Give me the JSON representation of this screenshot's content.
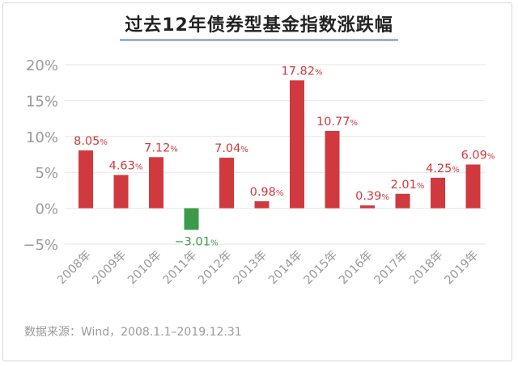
{
  "chart_data": {
    "type": "bar",
    "title": "过去12年债券型基金指数涨跌幅",
    "categories": [
      "2008年",
      "2009年",
      "2010年",
      "2011年",
      "2012年",
      "2013年",
      "2014年",
      "2015年",
      "2016年",
      "2017年",
      "2018年",
      "2019年"
    ],
    "values": [
      8.05,
      4.63,
      7.12,
      -3.01,
      7.04,
      0.98,
      17.82,
      10.77,
      0.39,
      2.01,
      4.25,
      6.09
    ],
    "value_labels": [
      {
        "num": "8.05",
        "unit": "%"
      },
      {
        "num": "4.63",
        "unit": "%"
      },
      {
        "num": "7.12",
        "unit": "%"
      },
      {
        "num": "−3.01",
        "unit": "%"
      },
      {
        "num": "7.04",
        "unit": "%"
      },
      {
        "num": "0.98",
        "unit": "%"
      },
      {
        "num": "17.82",
        "unit": "%"
      },
      {
        "num": "10.77",
        "unit": "%"
      },
      {
        "num": "0.39",
        "unit": "%"
      },
      {
        "num": "2.01",
        "unit": "%"
      },
      {
        "num": "4.25",
        "unit": "%"
      },
      {
        "num": "6.09",
        "unit": "%"
      }
    ],
    "ylim": [
      -5,
      20
    ],
    "yticks": [
      20,
      15,
      10,
      5,
      0,
      -5
    ],
    "ytick_labels": [
      "20%",
      "15%",
      "10%",
      "5%",
      "0%",
      "−5%"
    ],
    "xlabel": "",
    "ylabel": "",
    "grid": true,
    "legend": "none",
    "colors": {
      "positive": "#d0393d",
      "negative": "#3c9b4b",
      "grid": "#e6e6e6",
      "tick_text": "#9a9a9a"
    }
  },
  "footer": {
    "source": "数据来源：Wind，2008.1.1–2019.12.31"
  }
}
